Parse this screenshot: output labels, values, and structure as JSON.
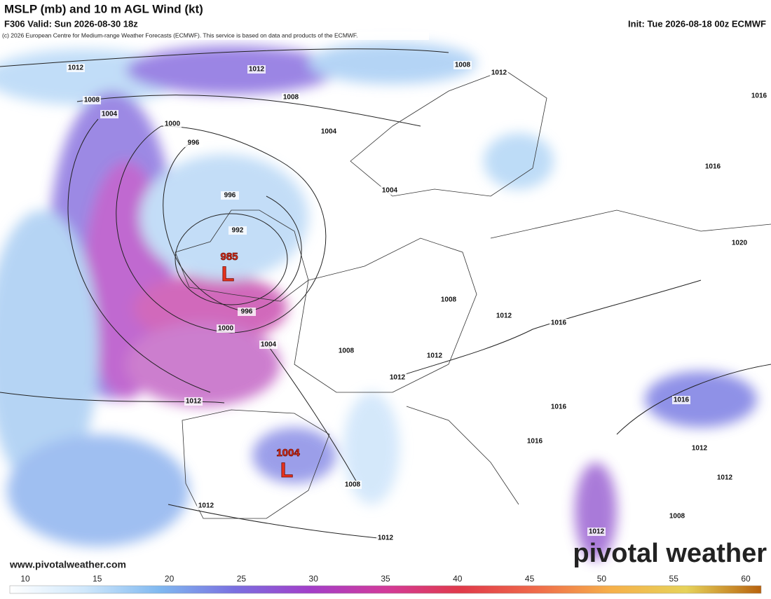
{
  "header": {
    "title": "MSLP (mb) and 10 m AGL Wind (kt)",
    "valid": "F306 Valid: Sun 2026-08-30 18z",
    "init": "Init: Tue 2026-08-18 00z ECMWF",
    "copyright": "(c) 2026 European Centre for Medium-range Weather Forecasts (ECMWF). This service is based on data and products of the ECMWF."
  },
  "map": {
    "isobar_labels": [
      "1012",
      "1012",
      "1008",
      "1012",
      "1016",
      "1008",
      "1004",
      "1008",
      "1004",
      "1000",
      "996",
      "1016",
      "1004",
      "996",
      "992",
      "1020",
      "996",
      "1000",
      "1004",
      "1008",
      "1012",
      "1016",
      "1008",
      "1012",
      "1012",
      "1012",
      "1016",
      "1016",
      "1016",
      "1012",
      "1008",
      "1012",
      "1012",
      "1008",
      "1012",
      "1012"
    ],
    "lows": [
      {
        "pressure": "985",
        "symbol": "L"
      },
      {
        "pressure": "1004",
        "symbol": "L"
      }
    ]
  },
  "footer": {
    "website": "www.pivotalweather.com",
    "logo": "pivotal weather"
  },
  "colorbar": {
    "ticks": [
      10,
      15,
      20,
      25,
      30,
      35,
      40,
      45,
      50,
      55,
      60
    ]
  }
}
